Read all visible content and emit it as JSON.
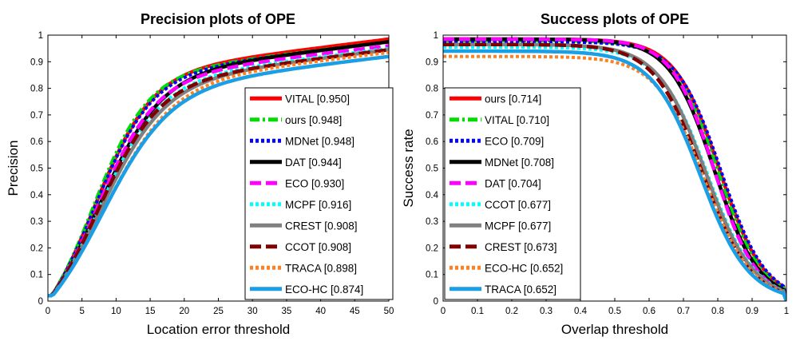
{
  "chart_data": [
    {
      "type": "line",
      "title": "Precision plots of OPE",
      "xlabel": "Location error threshold",
      "ylabel": "Precision",
      "xlim": [
        0,
        50
      ],
      "ylim": [
        0,
        1
      ],
      "xticks": [
        "0",
        "5",
        "10",
        "15",
        "20",
        "25",
        "30",
        "35",
        "40",
        "45",
        "50"
      ],
      "yticks": [
        "0",
        "0.1",
        "0.2",
        "0.3",
        "0.4",
        "0.5",
        "0.6",
        "0.7",
        "0.8",
        "0.9",
        "1"
      ],
      "grid": false,
      "legend_position": "right",
      "series": [
        {
          "name": "VITAL [0.950]",
          "color": "#ff0000",
          "dash": "solid",
          "final": 0.985,
          "k": 0.24,
          "x0": 3.6
        },
        {
          "name": "ours [0.948]",
          "color": "#00dd00",
          "dash": "dashdot",
          "final": 0.975,
          "k": 0.25,
          "x0": 3.5
        },
        {
          "name": "MDNet [0.948]",
          "color": "#0000ff",
          "dash": "dotted",
          "final": 0.975,
          "k": 0.24,
          "x0": 3.6
        },
        {
          "name": "DAT [0.944]",
          "color": "#000000",
          "dash": "solid",
          "final": 0.975,
          "k": 0.22,
          "x0": 3.9
        },
        {
          "name": "ECO [0.930]",
          "color": "#ff00ff",
          "dash": "dashed",
          "final": 0.96,
          "k": 0.23,
          "x0": 3.8
        },
        {
          "name": "MCPF [0.916]",
          "color": "#00ffff",
          "dash": "dotted",
          "final": 0.95,
          "k": 0.22,
          "x0": 3.9
        },
        {
          "name": "CREST [0.908]",
          "color": "#808080",
          "dash": "solid",
          "final": 0.945,
          "k": 0.21,
          "x0": 4.0
        },
        {
          "name": "CCOT [0.908]",
          "color": "#800000",
          "dash": "dashed",
          "final": 0.945,
          "k": 0.22,
          "x0": 3.8
        },
        {
          "name": "TRACA [0.898]",
          "color": "#ff8020",
          "dash": "dotted",
          "final": 0.935,
          "k": 0.2,
          "x0": 4.3
        },
        {
          "name": "ECO-HC [0.874]",
          "color": "#1a9fe6",
          "dash": "solid",
          "final": 0.92,
          "k": 0.2,
          "x0": 4.2
        }
      ]
    },
    {
      "type": "line",
      "title": "Success plots of OPE",
      "xlabel": "Overlap threshold",
      "ylabel": "Success rate",
      "xlim": [
        0,
        1
      ],
      "ylim": [
        0,
        1
      ],
      "xticks": [
        "0",
        "0.1",
        "0.2",
        "0.3",
        "0.4",
        "0.5",
        "0.6",
        "0.7",
        "0.8",
        "0.9",
        "1"
      ],
      "yticks": [
        "0",
        "0.1",
        "0.2",
        "0.3",
        "0.4",
        "0.5",
        "0.6",
        "0.7",
        "0.8",
        "0.9",
        "1"
      ],
      "grid": false,
      "legend_position": "left",
      "series": [
        {
          "name": "ours [0.714]",
          "color": "#ff0000",
          "dash": "solid",
          "start": 0.985,
          "x50": 0.805,
          "s": 0.065
        },
        {
          "name": "VITAL [0.710]",
          "color": "#00dd00",
          "dash": "dashdot",
          "start": 0.98,
          "x50": 0.8,
          "s": 0.065
        },
        {
          "name": "ECO [0.709]",
          "color": "#0000ff",
          "dash": "dotted",
          "start": 0.975,
          "x50": 0.81,
          "s": 0.065
        },
        {
          "name": "MDNet [0.708]",
          "color": "#000000",
          "dash": "solid",
          "start": 0.985,
          "x50": 0.79,
          "s": 0.065
        },
        {
          "name": "DAT [0.704]",
          "color": "#ff00ff",
          "dash": "dashed",
          "start": 0.985,
          "x50": 0.79,
          "s": 0.062
        },
        {
          "name": "CCOT [0.677]",
          "color": "#00ffff",
          "dash": "dotted",
          "start": 0.955,
          "x50": 0.77,
          "s": 0.07
        },
        {
          "name": "MCPF [0.677]",
          "color": "#808080",
          "dash": "solid",
          "start": 0.965,
          "x50": 0.765,
          "s": 0.07
        },
        {
          "name": "CREST [0.673]",
          "color": "#800000",
          "dash": "dashed",
          "start": 0.965,
          "x50": 0.755,
          "s": 0.07
        },
        {
          "name": "ECO-HC [0.652]",
          "color": "#ff8020",
          "dash": "dotted",
          "start": 0.92,
          "x50": 0.76,
          "s": 0.07
        },
        {
          "name": "TRACA [0.652]",
          "color": "#1a9fe6",
          "dash": "solid",
          "start": 0.94,
          "x50": 0.75,
          "s": 0.07
        }
      ]
    }
  ]
}
